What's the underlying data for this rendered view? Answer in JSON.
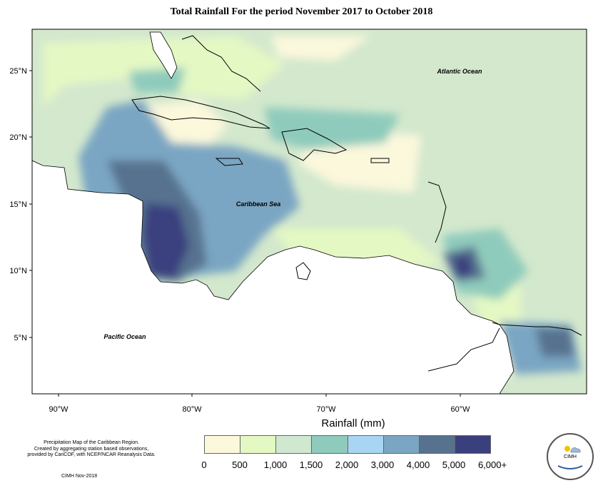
{
  "title": "Total Rainfall For the period November 2017 to October 2018",
  "map": {
    "x_ticks": [
      "90°W",
      "80°W",
      "70°W",
      "60°W"
    ],
    "y_ticks": [
      "25°N",
      "20°N",
      "15°N",
      "10°N",
      "5°N"
    ],
    "labels": {
      "atlantic": "Atlantic Ocean",
      "caribbean": "Caribbean Sea",
      "pacific": "Pacific Ocean"
    },
    "colors": {
      "ocean_base": "#d3e8cd",
      "land": "#ffffff"
    }
  },
  "legend": {
    "title": "Rainfall (mm)",
    "ticks": [
      "0",
      "500",
      "1,000",
      "1,500",
      "2,000",
      "3,000",
      "4,000",
      "5,000",
      "6,000+"
    ],
    "colors": [
      "#fbf8dc",
      "#e4f8c4",
      "#cfe8cf",
      "#8fcbbc",
      "#a8d6f2",
      "#7aa6c3",
      "#56728f",
      "#3a3f7e"
    ]
  },
  "caption": {
    "lines": [
      "Precipitation Map of the Caribbean Region.",
      "Created by aggregating station based observations,",
      "provided by CariCOF, with NCEP/NCAR Reanalysis Data."
    ],
    "credit": "CIMH Nov-2018"
  },
  "logo": {
    "text": "CIMH"
  }
}
